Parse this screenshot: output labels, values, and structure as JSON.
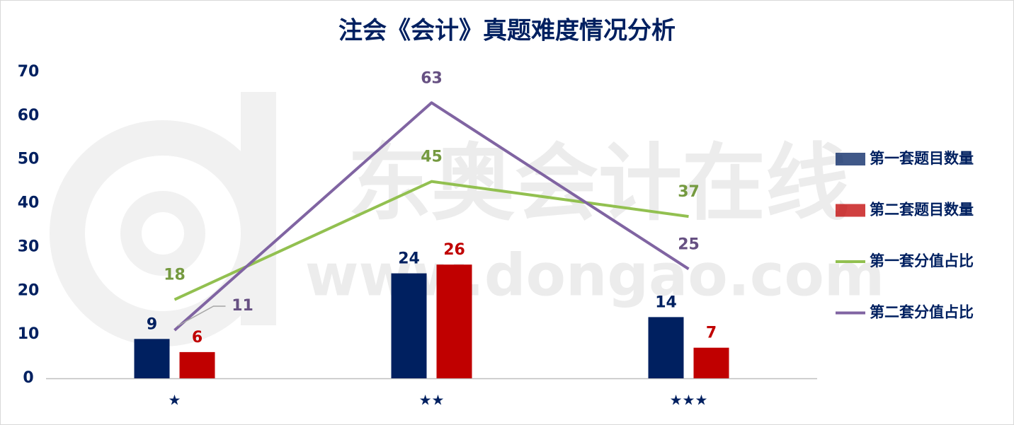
{
  "chart_data": {
    "type": "combo",
    "title": "注会《会计》真题难度情况分析",
    "watermark": {
      "brand": "东奥会计在线",
      "url": "www.dongao.com"
    },
    "categories": [
      "★",
      "★★",
      "★★★"
    ],
    "series": [
      {
        "name": "第一套题目数量",
        "type": "bar",
        "color": "#002060",
        "values": [
          9,
          24,
          14
        ]
      },
      {
        "name": "第二套题目数量",
        "type": "bar",
        "color": "#c00000",
        "values": [
          6,
          26,
          7
        ]
      },
      {
        "name": "第一套分值占比",
        "type": "line",
        "color": "#92c050",
        "values": [
          18,
          45,
          37
        ]
      },
      {
        "name": "第二套分值占比",
        "type": "line",
        "color": "#8064a2",
        "values": [
          11,
          63,
          25
        ]
      }
    ],
    "ylim": [
      0,
      70
    ],
    "yticks": [
      0,
      10,
      20,
      30,
      40,
      50,
      60,
      70
    ],
    "grid": false,
    "legend": "right"
  }
}
